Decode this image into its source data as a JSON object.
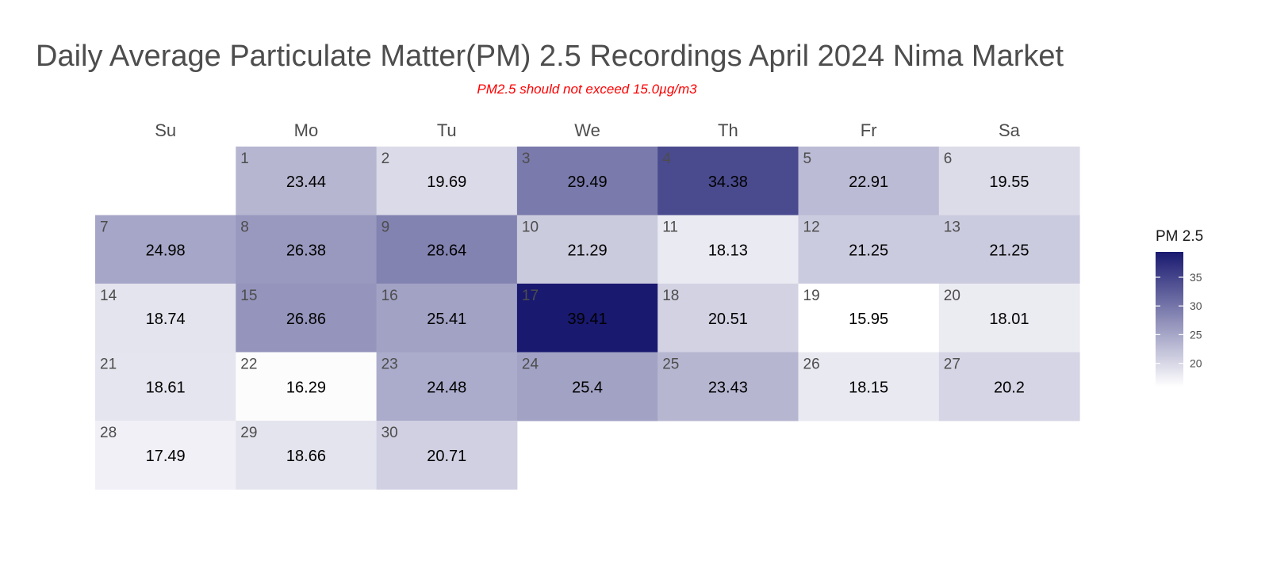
{
  "chart_data": {
    "type": "heatmap",
    "title": "Daily Average Particulate Matter(PM) 2.5 Recordings April 2024 Nima Market",
    "subtitle": "PM2.5 should not exceed 15.0µg/m3",
    "weekdays": [
      "Su",
      "Mo",
      "Tu",
      "We",
      "Th",
      "Fr",
      "Sa"
    ],
    "first_weekday_index": 1,
    "days": [
      {
        "day": "1",
        "value": 23.44
      },
      {
        "day": "2",
        "value": 19.69
      },
      {
        "day": "3",
        "value": 29.49
      },
      {
        "day": "4",
        "value": 34.38
      },
      {
        "day": "5",
        "value": 22.91
      },
      {
        "day": "6",
        "value": 19.55
      },
      {
        "day": "7",
        "value": 24.98
      },
      {
        "day": "8",
        "value": 26.38
      },
      {
        "day": "9",
        "value": 28.64
      },
      {
        "day": "10",
        "value": 21.29
      },
      {
        "day": "11",
        "value": 18.13
      },
      {
        "day": "12",
        "value": 21.25
      },
      {
        "day": "13",
        "value": 21.25
      },
      {
        "day": "14",
        "value": 18.74
      },
      {
        "day": "15",
        "value": 26.86
      },
      {
        "day": "16",
        "value": 25.41
      },
      {
        "day": "17",
        "value": 39.41
      },
      {
        "day": "18",
        "value": 20.51
      },
      {
        "day": "19",
        "value": 15.95
      },
      {
        "day": "20",
        "value": 18.01
      },
      {
        "day": "21",
        "value": 18.61
      },
      {
        "day": "22",
        "value": 16.29
      },
      {
        "day": "23",
        "value": 24.48
      },
      {
        "day": "24",
        "value": 25.4
      },
      {
        "day": "25",
        "value": 23.43
      },
      {
        "day": "26",
        "value": 18.15
      },
      {
        "day": "27",
        "value": 20.2
      },
      {
        "day": "28",
        "value": 17.49
      },
      {
        "day": "29",
        "value": 18.66
      },
      {
        "day": "30",
        "value": 20.71
      }
    ],
    "legend": {
      "title": "PM 2.5",
      "ticks": [
        20,
        25,
        30,
        35
      ],
      "placement": "right"
    },
    "color_scale": {
      "min_value": 15.95,
      "max_value": 39.41,
      "low_color": "#ffffff",
      "high_color": "#191970"
    },
    "value_range": [
      15.95,
      39.41
    ]
  }
}
